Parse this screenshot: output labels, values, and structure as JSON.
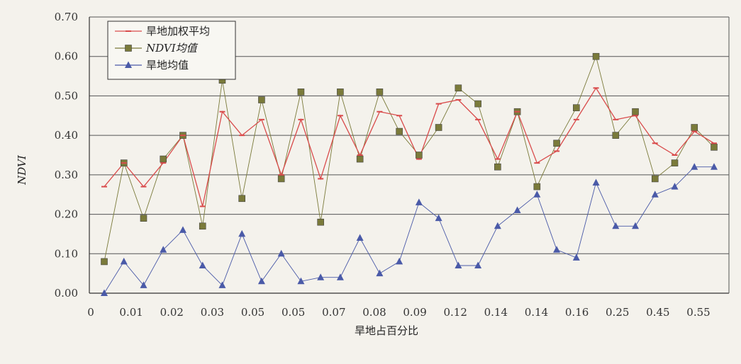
{
  "chart_data": {
    "type": "line",
    "xlabel": "旱地占百分比",
    "ylabel": "NDVI",
    "ylim": [
      0,
      0.7
    ],
    "yticks": [
      "0.00",
      "0.10",
      "0.20",
      "0.30",
      "0.40",
      "0.50",
      "0.60",
      "0.70"
    ],
    "xtick_labels": [
      "0",
      "0.01",
      "0.02",
      "0.03",
      "0.05",
      "0.05",
      "0.07",
      "0.08",
      "0.09",
      "0.12",
      "0.14",
      "0.14",
      "0.16",
      "0.25",
      "0.45",
      "0.55"
    ],
    "grid": "horizontal",
    "legend_position": "top-left",
    "series": [
      {
        "name": "旱地加权平均",
        "color": "#d94b4b",
        "marker": "dash",
        "values": [
          0.27,
          0.33,
          0.27,
          0.33,
          0.4,
          0.22,
          0.46,
          0.4,
          0.44,
          0.3,
          0.44,
          0.29,
          0.45,
          0.35,
          0.46,
          0.45,
          0.34,
          0.48,
          0.49,
          0.44,
          0.34,
          0.46,
          0.33,
          0.36,
          0.44,
          0.52,
          0.44,
          0.45,
          0.38,
          0.35,
          0.41,
          0.38
        ]
      },
      {
        "name": "NDVI均值",
        "color": "#7a7a3a",
        "marker": "square",
        "values": [
          0.08,
          0.33,
          0.19,
          0.34,
          0.4,
          0.17,
          0.54,
          0.24,
          0.49,
          0.29,
          0.51,
          0.18,
          0.51,
          0.34,
          0.51,
          0.41,
          0.35,
          0.42,
          0.52,
          0.48,
          0.32,
          0.46,
          0.27,
          0.38,
          0.47,
          0.6,
          0.4,
          0.46,
          0.29,
          0.33,
          0.42,
          0.37
        ]
      },
      {
        "name": "旱地均值",
        "color": "#4a5aa8",
        "marker": "triangle",
        "values": [
          0.0,
          0.08,
          0.02,
          0.11,
          0.16,
          0.07,
          0.02,
          0.15,
          0.03,
          0.1,
          0.03,
          0.04,
          0.04,
          0.14,
          0.05,
          0.08,
          0.23,
          0.19,
          0.07,
          0.07,
          0.17,
          0.21,
          0.25,
          0.11,
          0.09,
          0.28,
          0.17,
          0.17,
          0.25,
          0.27,
          0.32,
          0.32
        ]
      }
    ]
  }
}
